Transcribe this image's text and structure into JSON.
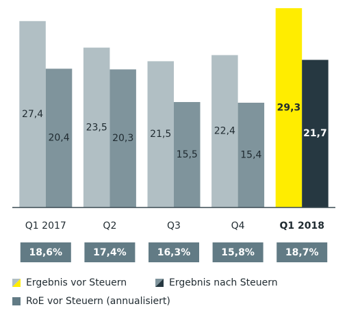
{
  "chart_data": {
    "type": "bar",
    "categories": [
      "Q1 2017",
      "Q2",
      "Q3",
      "Q4",
      "Q1 2018"
    ],
    "highlight": [
      false,
      false,
      false,
      false,
      true
    ],
    "ylim": [
      0,
      30.5
    ],
    "series": [
      {
        "name": "Ergebnis vor Steuern",
        "color": "#b1bfc4",
        "colors": [
          "#b1bfc4",
          "#b1bfc4",
          "#b1bfc4",
          "#b1bfc4",
          "#ffed00"
        ],
        "values": [
          27.4,
          23.5,
          21.5,
          22.4,
          29.3
        ],
        "value_labels": [
          "27,4",
          "23,5",
          "21,5",
          "22,4",
          "29,3"
        ]
      },
      {
        "name": "Ergebnis nach Steuern",
        "color": "#7f949c",
        "colors": [
          "#7f949c",
          "#7f949c",
          "#7f949c",
          "#7f949c",
          "#263841"
        ],
        "values": [
          20.4,
          20.3,
          15.5,
          15.4,
          21.7
        ],
        "value_labels": [
          "20,4",
          "20,3",
          "15,5",
          "15,4",
          "21,7"
        ]
      }
    ],
    "roe": {
      "name": "RoE vor Steuern (annualisiert)",
      "color": "#627b85",
      "values": [
        18.6,
        17.4,
        16.3,
        15.8,
        18.7
      ],
      "value_labels": [
        "18,6%",
        "17,4%",
        "16,3%",
        "15,8%",
        "18,7%"
      ]
    }
  }
}
